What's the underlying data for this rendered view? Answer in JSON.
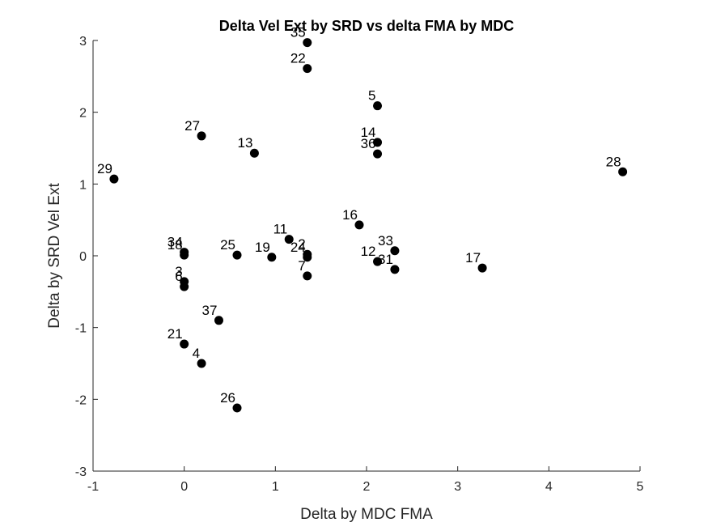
{
  "chart_data": {
    "type": "scatter",
    "title": "Delta Vel Ext by SRD vs delta FMA by MDC",
    "xlabel": "Delta by MDC FMA",
    "ylabel": "Delta by SRD Vel Ext",
    "xlim": [
      -1,
      5
    ],
    "ylim": [
      -3,
      3
    ],
    "xticks": [
      "-1",
      "0",
      "1",
      "2",
      "3",
      "4",
      "5"
    ],
    "yticks": [
      "-3",
      "-2",
      "-1",
      "0",
      "1",
      "2",
      "3"
    ],
    "grid": false,
    "marker_color": "#000000",
    "points": [
      {
        "label": "35",
        "x": 1.35,
        "y": 2.97
      },
      {
        "label": "22",
        "x": 1.35,
        "y": 2.61
      },
      {
        "label": "5",
        "x": 2.12,
        "y": 2.09
      },
      {
        "label": "27",
        "x": 0.19,
        "y": 1.67
      },
      {
        "label": "14",
        "x": 2.12,
        "y": 1.58
      },
      {
        "label": "13",
        "x": 0.77,
        "y": 1.43
      },
      {
        "label": "36",
        "x": 2.12,
        "y": 1.42
      },
      {
        "label": "28",
        "x": 4.81,
        "y": 1.17
      },
      {
        "label": "29",
        "x": -0.77,
        "y": 1.07
      },
      {
        "label": "16",
        "x": 1.92,
        "y": 0.43
      },
      {
        "label": "11",
        "x": 1.15,
        "y": 0.23
      },
      {
        "label": "33",
        "x": 2.31,
        "y": 0.07
      },
      {
        "label": "34",
        "x": 0.0,
        "y": 0.05
      },
      {
        "label": "18",
        "x": 0.0,
        "y": 0.01
      },
      {
        "label": "25",
        "x": 0.58,
        "y": 0.01
      },
      {
        "label": "2",
        "x": 1.35,
        "y": 0.02
      },
      {
        "label": "24",
        "x": 1.35,
        "y": -0.02
      },
      {
        "label": "19",
        "x": 0.96,
        "y": -0.02
      },
      {
        "label": "12",
        "x": 2.12,
        "y": -0.08
      },
      {
        "label": "31",
        "x": 2.31,
        "y": -0.19
      },
      {
        "label": "17",
        "x": 3.27,
        "y": -0.17
      },
      {
        "label": "7",
        "x": 1.35,
        "y": -0.28
      },
      {
        "label": "3",
        "x": 0.0,
        "y": -0.36
      },
      {
        "label": "6",
        "x": 0.0,
        "y": -0.43
      },
      {
        "label": "37",
        "x": 0.38,
        "y": -0.9
      },
      {
        "label": "21",
        "x": 0.0,
        "y": -1.23
      },
      {
        "label": "4",
        "x": 0.19,
        "y": -1.5
      },
      {
        "label": "26",
        "x": 0.58,
        "y": -2.12
      }
    ]
  }
}
